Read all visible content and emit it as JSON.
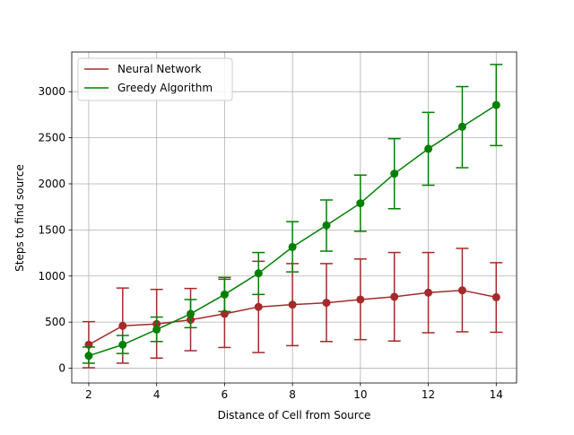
{
  "chart_data": {
    "type": "line",
    "title": "",
    "xlabel": "Distance of Cell from Source",
    "ylabel": "Steps to find source",
    "x": [
      2,
      3,
      4,
      5,
      6,
      7,
      8,
      9,
      10,
      11,
      12,
      13,
      14
    ],
    "xlim": [
      1.5,
      14.6
    ],
    "ylim": [
      -160,
      3430
    ],
    "xticks": [
      2,
      4,
      6,
      8,
      10,
      12,
      14
    ],
    "yticks": [
      0,
      500,
      1000,
      1500,
      2000,
      2500,
      3000
    ],
    "grid": true,
    "legend_position": "top-left",
    "series": [
      {
        "name": "Neural Network",
        "color": "#a52a2a",
        "values": [
          255,
          460,
          480,
          525,
          590,
          665,
          690,
          710,
          745,
          775,
          820,
          845,
          770
        ],
        "err_low": [
          5,
          55,
          110,
          190,
          225,
          170,
          245,
          290,
          310,
          295,
          385,
          395,
          390
        ],
        "err_high": [
          505,
          870,
          855,
          865,
          965,
          1160,
          1135,
          1135,
          1185,
          1255,
          1255,
          1300,
          1145
        ]
      },
      {
        "name": "Greedy Algorithm",
        "color": "#008000",
        "values": [
          135,
          255,
          420,
          590,
          800,
          1030,
          1315,
          1550,
          1790,
          2110,
          2380,
          2620,
          2855
        ],
        "err_low": [
          55,
          160,
          290,
          440,
          615,
          800,
          1045,
          1270,
          1485,
          1730,
          1985,
          2175,
          2415
        ],
        "err_high": [
          230,
          355,
          555,
          745,
          985,
          1255,
          1590,
          1825,
          2095,
          2490,
          2775,
          3055,
          3295
        ]
      }
    ]
  }
}
